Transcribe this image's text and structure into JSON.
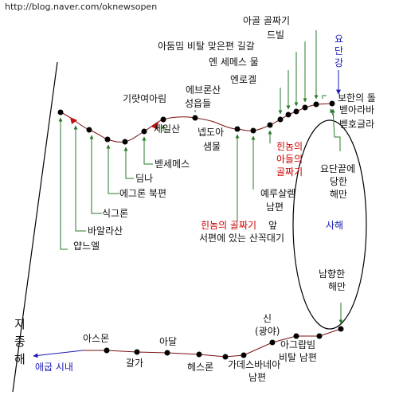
{
  "watermark": "http://blog.naver.com/oknewsopen",
  "top_route": {
    "labels": {
      "yabneul": "얍느엘",
      "baalasan": "바알라산",
      "sikeuron": "식그론",
      "ekreon_bukpyeon": "에그론 북편",
      "dimna": "딤나",
      "betsemes": "벧세메스",
      "giryat_yearim": "기럇여아림",
      "seilsan": "세일산",
      "ebeuronsan": "에브론산",
      "seongeupdeul": "성읍들",
      "neptoa": "넵도아",
      "saemmul": "샘물",
      "yeru_salem_nampyeon": [
        "예루살렘",
        "남편"
      ],
      "hinnom_adeul": [
        "힌놈의",
        "아들의",
        "골짜기"
      ],
      "rogel": "엔로겔",
      "en_semes": "엔 세메스 물",
      "adummim": "아둠밈 비탈 맞은편 길갈",
      "debir": "드빌",
      "akor": "아골 골짜기",
      "yodan_gang": [
        "요",
        "단",
        "강"
      ],
      "bohan_dol": "보한의 돌",
      "bet_araba": "벧아라바",
      "bet_hogla": "벧호글라"
    },
    "hinnom_west": [
      "힌놈의 골짜기앞",
      "서편에 있는 산꼭대기"
    ],
    "hinnom_west_red": "힌놈의 골짜기"
  },
  "dead_sea": {
    "name": "사해",
    "north_bay": [
      "요단끝에",
      "당한",
      "해만"
    ],
    "south_bay": [
      "남향한",
      "해만"
    ]
  },
  "bottom_route": {
    "sea_name": [
      "지",
      "중",
      "해"
    ],
    "egypt_stream": "애굽 시내",
    "labels": {
      "asmon": "아스몬",
      "galga": "갈가",
      "adal": "아달",
      "hesron": "헤스론",
      "kadesh_barnea": [
        "가데스바네아",
        "남편"
      ],
      "sin": [
        "신",
        "(광야)"
      ],
      "akrabbim": [
        "아그랍빔",
        "비탈 남편"
      ]
    }
  },
  "colors": {
    "route_line": "#7a1010",
    "marker_red": "#c01010",
    "arrow_green": "#2a7a2a",
    "label_red": "#cc0000",
    "label_blue": "#1a1ab4",
    "dot": "#000000"
  }
}
